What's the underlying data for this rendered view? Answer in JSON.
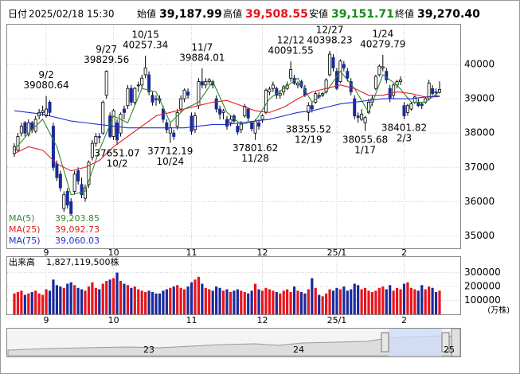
{
  "header": {
    "date_label": "日付",
    "datetime": "2025/02/18 15:30",
    "open_label": "始値",
    "open": "39,187.99",
    "high_label": "高値",
    "high": "39,508.55",
    "low_label": "安値",
    "low": "39,151.71",
    "close_label": "終値",
    "close": "39,270.40"
  },
  "chart_data": [
    {
      "type": "candlestick",
      "up_color": "#ffffff",
      "down_color": "#1a2a9c",
      "candles": [
        [
          37400,
          37700,
          37300,
          37600
        ],
        [
          37500,
          38000,
          37450,
          37900
        ],
        [
          38000,
          38300,
          37900,
          38200
        ],
        [
          38300,
          38350,
          37900,
          38000
        ],
        [
          37950,
          38400,
          37900,
          38300
        ],
        [
          38300,
          38350,
          38000,
          38100
        ],
        [
          38050,
          38500,
          38000,
          38400
        ],
        [
          38500,
          38700,
          38400,
          38600
        ],
        [
          38600,
          38800,
          38500,
          38650
        ],
        [
          38500,
          39080.64,
          38450,
          38700
        ],
        [
          38900,
          38950,
          38500,
          38600
        ],
        [
          38200,
          38300,
          36900,
          37000
        ],
        [
          37100,
          37200,
          36600,
          36700
        ],
        [
          36800,
          36900,
          36300,
          36400
        ],
        [
          35800,
          36300,
          35700,
          36200
        ],
        [
          36300,
          36400,
          35800,
          35900
        ],
        [
          36000,
          36100,
          35600,
          35650
        ],
        [
          36300,
          36900,
          36200,
          36800
        ],
        [
          36900,
          37000,
          36500,
          36600
        ],
        [
          36500,
          36700,
          36100,
          36200
        ],
        [
          36100,
          36500,
          36000,
          36400
        ],
        [
          36500,
          37200,
          36400,
          37150
        ],
        [
          37300,
          37800,
          37200,
          37700
        ],
        [
          37700,
          38000,
          37600,
          37900
        ],
        [
          37900,
          38000,
          37700,
          37870
        ],
        [
          38000,
          38950,
          37950,
          38900
        ],
        [
          39100,
          39829.56,
          39000,
          39800
        ],
        [
          38500,
          38600,
          37850,
          37900
        ],
        [
          37900,
          38700,
          37800,
          38650
        ],
        [
          38300,
          38400,
          37651.07,
          37800
        ],
        [
          38000,
          38600,
          37900,
          38550
        ],
        [
          38700,
          38800,
          38400,
          38600
        ],
        [
          38800,
          39400,
          38700,
          39300
        ],
        [
          39300,
          39400,
          38800,
          38900
        ],
        [
          38900,
          39350,
          38800,
          39300
        ],
        [
          39400,
          39500,
          39200,
          39400
        ],
        [
          39400,
          39700,
          39300,
          39600
        ],
        [
          39700,
          40257.34,
          39600,
          39900
        ],
        [
          39700,
          39800,
          39100,
          39200
        ],
        [
          39100,
          39200,
          38800,
          38900
        ],
        [
          39000,
          39100,
          38800,
          38980
        ],
        [
          39000,
          39100,
          38850,
          38950
        ],
        [
          38700,
          38800,
          38300,
          38400
        ],
        [
          38300,
          38400,
          38000,
          38100
        ],
        [
          38000,
          38300,
          37712.19,
          38150
        ],
        [
          38000,
          38100,
          37800,
          37900
        ],
        [
          38200,
          38700,
          38100,
          38600
        ],
        [
          38700,
          39100,
          38600,
          39000
        ],
        [
          39000,
          39300,
          38900,
          39250
        ],
        [
          39200,
          39300,
          39000,
          39100
        ],
        [
          38500,
          38600,
          37950,
          38050
        ],
        [
          38100,
          38600,
          38000,
          38500
        ],
        [
          38800,
          39600,
          38700,
          39500
        ],
        [
          39500,
          39884.01,
          39300,
          39400
        ],
        [
          39400,
          39600,
          39300,
          39500
        ],
        [
          39500,
          39600,
          39400,
          39550
        ],
        [
          39500,
          39550,
          39300,
          39400
        ],
        [
          39000,
          39100,
          38600,
          38700
        ],
        [
          38700,
          38800,
          38400,
          38550
        ],
        [
          38600,
          38700,
          38400,
          38650
        ],
        [
          38400,
          38500,
          38100,
          38200
        ],
        [
          38300,
          38500,
          38200,
          38400
        ],
        [
          38500,
          38550,
          38300,
          38350
        ],
        [
          38200,
          38300,
          37950,
          38030
        ],
        [
          38100,
          38350,
          38000,
          38280
        ],
        [
          38500,
          38850,
          38450,
          38780
        ],
        [
          38700,
          38750,
          38350,
          38440
        ],
        [
          38300,
          38350,
          38050,
          38130
        ],
        [
          38000,
          38400,
          37801.62,
          38350
        ],
        [
          38300,
          38400,
          38100,
          38200
        ],
        [
          38400,
          38550,
          38300,
          38500
        ],
        [
          38600,
          39300,
          38550,
          39250
        ],
        [
          39200,
          39350,
          39100,
          39280
        ],
        [
          39300,
          39500,
          39200,
          39400
        ],
        [
          39300,
          39350,
          39000,
          39100
        ],
        [
          39100,
          39250,
          39000,
          39150
        ],
        [
          39200,
          39400,
          39100,
          39350
        ],
        [
          39300,
          39500,
          39250,
          39400
        ],
        [
          39600,
          40091.55,
          39500,
          39850
        ],
        [
          39600,
          39700,
          39400,
          39450
        ],
        [
          39400,
          39500,
          39300,
          39450
        ],
        [
          39500,
          39550,
          39300,
          39350
        ],
        [
          39300,
          39400,
          39050,
          39100
        ],
        [
          38600,
          38900,
          38355.52,
          38800
        ],
        [
          38800,
          38900,
          38600,
          38700
        ],
        [
          38900,
          39200,
          38850,
          39150
        ],
        [
          39100,
          39200,
          39000,
          39050
        ],
        [
          39100,
          39200,
          39050,
          39150
        ],
        [
          39200,
          39600,
          39150,
          39550
        ],
        [
          39700,
          40398.23,
          39650,
          40300
        ],
        [
          40200,
          40300,
          39800,
          39900
        ],
        [
          39800,
          39900,
          39250,
          39300
        ],
        [
          39500,
          40150,
          39450,
          40100
        ],
        [
          40000,
          40100,
          39800,
          39900
        ],
        [
          39800,
          39900,
          39500,
          39600
        ],
        [
          39500,
          39600,
          39100,
          39200
        ],
        [
          39000,
          39100,
          38400,
          38500
        ],
        [
          38500,
          38600,
          38300,
          38450
        ],
        [
          38400,
          38700,
          38350,
          38550
        ],
        [
          38300,
          38500,
          38055.68,
          38450
        ],
        [
          38600,
          39000,
          38550,
          38900
        ],
        [
          38900,
          39100,
          38800,
          39000
        ],
        [
          39300,
          39700,
          39250,
          39650
        ],
        [
          39700,
          40000,
          39650,
          39950
        ],
        [
          39900,
          40279.79,
          39800,
          39930
        ],
        [
          39800,
          39900,
          39450,
          39550
        ],
        [
          39300,
          39400,
          38900,
          39000
        ],
        [
          39100,
          39450,
          39000,
          39400
        ],
        [
          39400,
          39550,
          39300,
          39500
        ],
        [
          39500,
          39650,
          39400,
          39550
        ],
        [
          38800,
          38900,
          38401.82,
          38500
        ],
        [
          38600,
          38850,
          38500,
          38800
        ],
        [
          38700,
          38900,
          38650,
          38850
        ],
        [
          38900,
          39100,
          38850,
          39050
        ],
        [
          38900,
          39000,
          38750,
          38800
        ],
        [
          38850,
          38900,
          38700,
          38800
        ],
        [
          38900,
          39050,
          38850,
          39000
        ],
        [
          39000,
          39550,
          38950,
          39460
        ],
        [
          39300,
          39400,
          39100,
          39150
        ],
        [
          39200,
          39300,
          39050,
          39170
        ],
        [
          39187.99,
          39508.55,
          39151.71,
          39270.4
        ]
      ],
      "ylim": [
        34640,
        41160
      ],
      "yticks": [
        35000,
        36000,
        37000,
        38000,
        39000,
        40000
      ],
      "grid": true,
      "xticks": [
        {
          "value": 9,
          "label": "9"
        },
        {
          "value": 28,
          "label": "10"
        },
        {
          "value": 50,
          "label": "11"
        },
        {
          "value": 70,
          "label": "12"
        },
        {
          "value": 91,
          "label": "25/1"
        },
        {
          "value": 110,
          "label": "2"
        }
      ],
      "annotations": [
        {
          "date": "9/2",
          "value": 39080.64,
          "x": 9
        },
        {
          "date": "9/27",
          "value": 39829.56,
          "x": 26
        },
        {
          "date": "10/2",
          "value": 37651.07,
          "x": 29
        },
        {
          "date": "10/15",
          "value": 40257.34,
          "x": 37
        },
        {
          "date": "10/24",
          "value": 37712.19,
          "x": 44
        },
        {
          "date": "11/7",
          "value": 39884.01,
          "x": 53
        },
        {
          "date": "11/28",
          "value": 37801.62,
          "x": 68
        },
        {
          "date": "12/12",
          "value": 40091.55,
          "x": 78
        },
        {
          "date": "12/19",
          "value": 38355.52,
          "x": 83
        },
        {
          "date": "12/27",
          "value": 40398.23,
          "x": 89
        },
        {
          "date": "1/17",
          "value": 38055.68,
          "x": 99
        },
        {
          "date": "1/24",
          "value": 40279.79,
          "x": 104
        },
        {
          "date": "2/3",
          "value": 38401.82,
          "x": 110
        }
      ],
      "series": [
        {
          "name": "MA(5)",
          "color": "#2e8b2e",
          "legend_value": "39,203.85",
          "x": [
            0,
            4,
            8,
            12,
            16,
            20,
            24,
            28,
            32,
            36,
            40,
            44,
            48,
            52,
            56,
            60,
            64,
            68,
            72,
            76,
            80,
            84,
            88,
            92,
            96,
            100,
            104,
            108,
            112,
            116,
            120
          ],
          "values": [
            37500,
            38000,
            38400,
            37600,
            36200,
            36300,
            37500,
            38500,
            38300,
            39300,
            39200,
            38300,
            38700,
            38900,
            39500,
            38600,
            38250,
            38350,
            39000,
            39300,
            39600,
            38900,
            39200,
            39800,
            39300,
            38600,
            39700,
            39400,
            38900,
            38900,
            39203.85
          ]
        },
        {
          "name": "MA(25)",
          "color": "#e02020",
          "legend_value": "39,092.73",
          "x": [
            0,
            4,
            8,
            12,
            16,
            20,
            24,
            28,
            32,
            36,
            40,
            44,
            48,
            52,
            56,
            60,
            64,
            68,
            72,
            76,
            80,
            84,
            88,
            92,
            96,
            100,
            104,
            108,
            112,
            116,
            120
          ],
          "values": [
            37400,
            37600,
            37500,
            37100,
            36900,
            37000,
            37200,
            37600,
            37900,
            38200,
            38500,
            38600,
            38700,
            38800,
            38900,
            38950,
            38800,
            38650,
            38600,
            38750,
            39000,
            39200,
            39300,
            39400,
            39300,
            39100,
            39100,
            39200,
            39150,
            39050,
            39092.73
          ]
        },
        {
          "name": "MA(75)",
          "color": "#2030d0",
          "legend_value": "39,060.03",
          "x": [
            0,
            4,
            8,
            12,
            16,
            20,
            24,
            28,
            32,
            36,
            40,
            44,
            48,
            52,
            56,
            60,
            64,
            68,
            72,
            76,
            80,
            84,
            88,
            92,
            96,
            100,
            104,
            108,
            112,
            116,
            120
          ],
          "values": [
            38650,
            38600,
            38550,
            38450,
            38350,
            38300,
            38250,
            38200,
            38150,
            38150,
            38150,
            38150,
            38150,
            38200,
            38250,
            38250,
            38300,
            38350,
            38400,
            38500,
            38600,
            38650,
            38750,
            38850,
            38900,
            38950,
            39000,
            39000,
            39000,
            39050,
            39060.03
          ]
        }
      ]
    },
    {
      "type": "bar",
      "title": "出来高",
      "total": "1,827,119,500株",
      "up_color": "#e8141c",
      "down_color": "#1a2a9c",
      "unit": "(万株)",
      "values": [
        150000,
        160000,
        170000,
        140000,
        150000,
        160000,
        170000,
        150000,
        140000,
        180000,
        170000,
        250000,
        210000,
        200000,
        190000,
        220000,
        230000,
        210000,
        190000,
        180000,
        170000,
        200000,
        230000,
        190000,
        180000,
        220000,
        240000,
        250000,
        260000,
        300000,
        240000,
        220000,
        210000,
        190000,
        200000,
        180000,
        170000,
        160000,
        170000,
        160000,
        150000,
        150000,
        170000,
        180000,
        190000,
        200000,
        210000,
        190000,
        180000,
        200000,
        230000,
        250000,
        270000,
        220000,
        190000,
        180000,
        170000,
        200000,
        190000,
        170000,
        180000,
        160000,
        170000,
        180000,
        170000,
        160000,
        150000,
        170000,
        220000,
        180000,
        170000,
        190000,
        180000,
        170000,
        160000,
        150000,
        170000,
        180000,
        160000,
        200000,
        170000,
        160000,
        150000,
        180000,
        260000,
        190000,
        140000,
        130000,
        150000,
        180000,
        170000,
        190000,
        180000,
        200000,
        170000,
        180000,
        220000,
        210000,
        180000,
        190000,
        170000,
        160000,
        170000,
        190000,
        200000,
        180000,
        210000,
        170000,
        190000,
        180000,
        220000,
        230000,
        190000,
        180000,
        170000,
        210000,
        180000,
        200000,
        190000,
        160000,
        170000
      ],
      "ylim": [
        0,
        412000
      ],
      "yticks": [
        100000,
        200000,
        300000
      ]
    }
  ],
  "navigator": {
    "labels": [
      "23",
      "24",
      "25"
    ]
  }
}
